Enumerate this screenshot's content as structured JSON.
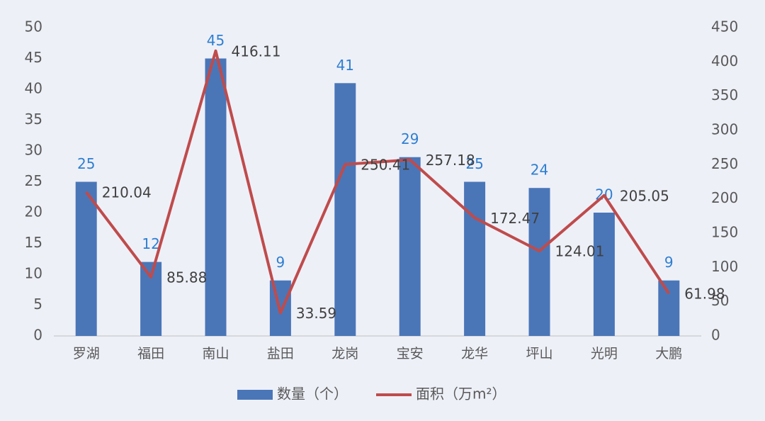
{
  "chart_data": {
    "type": "combo",
    "categories": [
      "罗湖",
      "福田",
      "南山",
      "盐田",
      "龙岗",
      "宝安",
      "龙华",
      "坪山",
      "光明",
      "大鹏"
    ],
    "series": [
      {
        "name": "数量（个）",
        "type": "bar",
        "color": "#4a76b8",
        "label_color": "#2e7fd0",
        "values": [
          25,
          12,
          45,
          9,
          41,
          29,
          25,
          24,
          20,
          9
        ]
      },
      {
        "name": "面积（万m²）",
        "type": "line",
        "axis": "y2",
        "color": "#bf4b4b",
        "label_color": "#404040",
        "values": [
          210.04,
          85.88,
          416.11,
          33.59,
          250.41,
          257.18,
          172.47,
          124.01,
          205.05,
          61.98
        ]
      }
    ],
    "ylim": [
      0,
      50
    ],
    "yticks": [
      0,
      5,
      10,
      15,
      20,
      25,
      30,
      35,
      40,
      45,
      50
    ],
    "y2lim": [
      0,
      450
    ],
    "y2ticks": [
      0,
      50,
      100,
      150,
      200,
      250,
      300,
      350,
      400,
      450
    ],
    "legend": "bottom"
  }
}
